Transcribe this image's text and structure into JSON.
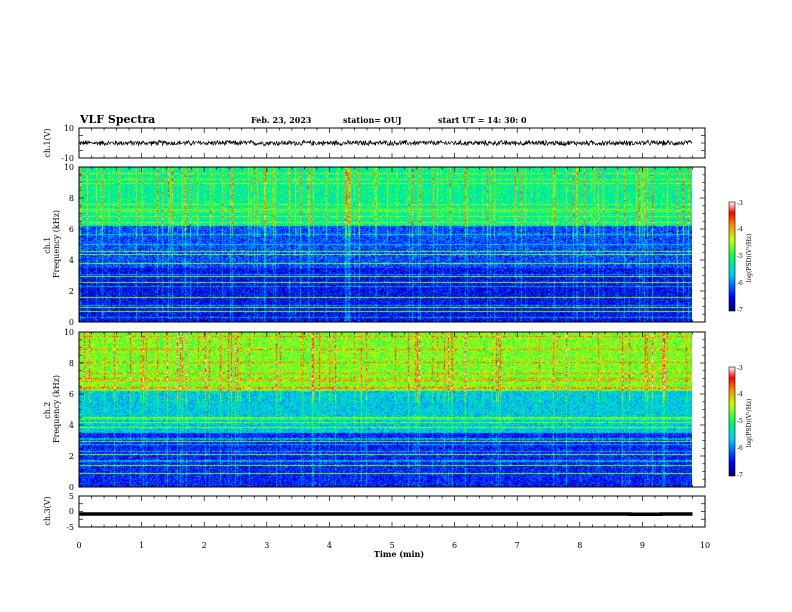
{
  "header": {
    "title": "VLF Spectra",
    "date": "Feb. 23, 2023",
    "station": "station= OUJ",
    "start": "start  UT =   14: 30: 0"
  },
  "chart_data": [
    {
      "type": "line",
      "panel": "ch1-waveform",
      "ylabel": "ch.1(V)",
      "ylim": [
        -10,
        10
      ],
      "yticks": [
        "10",
        "-10"
      ],
      "xlim": [
        0,
        10
      ],
      "series": [
        {
          "x": [
            0,
            9.8
          ],
          "y": [
            0,
            0
          ],
          "amplitude": 2
        }
      ]
    },
    {
      "type": "heatmap",
      "panel": "ch1-spectrogram",
      "ylabel": "ch.1\nFrequency  (kHz)",
      "ylim": [
        0,
        10
      ],
      "yticks": [
        "0",
        "2",
        "4",
        "6",
        "8",
        "10"
      ],
      "xlim": [
        0,
        10
      ],
      "colorbar": {
        "label": "log(PSD)(V²/Hz)",
        "ticks": [
          "-3",
          "-4",
          "-5",
          "-6",
          "-7"
        ],
        "range": [
          -7,
          -3
        ]
      },
      "features": {
        "upper_band_level": -5.2,
        "mid_band_level": -6.2,
        "lower_band_level": -6.5,
        "strong_lines_khz": [
          0.7,
          1.0,
          1.6,
          2.6,
          3.0,
          3.8,
          4.4,
          4.6,
          7.3
        ]
      }
    },
    {
      "type": "heatmap",
      "panel": "ch2-spectrogram",
      "ylabel": "ch.2\nFrequency  (kHz)",
      "ylim": [
        0,
        10
      ],
      "yticks": [
        "0",
        "2",
        "4",
        "6",
        "8",
        "10"
      ],
      "xlim": [
        0,
        10
      ],
      "colorbar": {
        "label": "log(PSD)(V²/Hz)",
        "ticks": [
          "-3",
          "-4",
          "-5",
          "-6",
          "-7"
        ],
        "range": [
          -7,
          -3
        ]
      },
      "features": {
        "upper_band_level": -4.6,
        "mid_band_level": -5.6,
        "lower_band_level": -6.4,
        "strong_lines_khz": [
          0.9,
          1.4,
          2.1,
          3.0,
          3.9,
          4.2,
          4.5,
          6.7
        ]
      }
    },
    {
      "type": "line",
      "panel": "ch3-waveform",
      "ylabel": "ch.3(V)",
      "ylim": [
        -5,
        5
      ],
      "yticks": [
        "5",
        "0",
        "-5"
      ],
      "xlim": [
        0,
        10
      ],
      "series": [
        {
          "x": [
            0,
            8.8,
            8.8,
            9.3,
            9.3,
            9.8
          ],
          "y": [
            -0.8,
            -0.8,
            -0.9,
            -0.9,
            -0.8,
            -0.8
          ]
        }
      ]
    }
  ],
  "xaxis": {
    "label": "Time  (min)",
    "ticks": [
      "0",
      "1",
      "2",
      "3",
      "4",
      "5",
      "6",
      "7",
      "8",
      "9",
      "10"
    ],
    "range": [
      0,
      10
    ],
    "data_end": 9.8
  }
}
